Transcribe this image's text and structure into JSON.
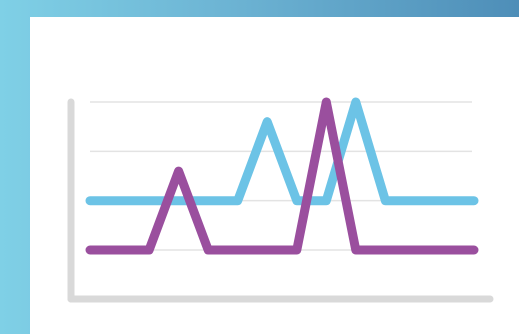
{
  "chart_data": {
    "type": "line",
    "x": [
      0,
      1,
      2,
      3,
      4,
      5,
      6,
      7,
      8,
      9,
      10,
      11,
      12,
      13
    ],
    "series": [
      {
        "values": [
          1.0,
          1.0,
          1.0,
          1.0,
          1.0,
          1.0,
          2.6,
          1.0,
          1.0,
          3.0,
          1.0,
          1.0,
          1.0,
          1.0
        ],
        "color": "#6cc3e6"
      },
      {
        "values": [
          0.0,
          0.0,
          0.0,
          1.6,
          0.0,
          0.0,
          0.0,
          0.0,
          3.0,
          0.0,
          0.0,
          0.0,
          0.0,
          0.0
        ],
        "color": "#9a4f9e"
      }
    ],
    "ylim": [
      0,
      3
    ],
    "grid": true,
    "axis_color": "#d9d9d9",
    "grid_color": "#e3e3e3"
  },
  "colors": {
    "background_gradient_start": "#7fd0e6",
    "background_gradient_end": "#4e8eb8",
    "card": "#ffffff"
  }
}
